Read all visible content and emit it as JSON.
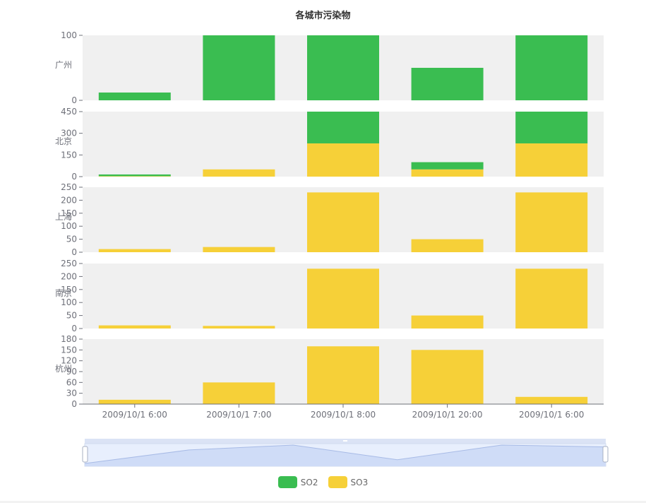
{
  "chart_data": {
    "title": "各城市污染物",
    "type": "bar",
    "stacked": true,
    "categories": [
      "2009/10/1 6:00",
      "2009/10/1 7:00",
      "2009/10/1 8:00",
      "2009/10/1 20:00",
      "2009/10/1 6:00"
    ],
    "legend": {
      "position": "bottom-center",
      "items": [
        "SO2",
        "SO3"
      ]
    },
    "colors": {
      "SO2": "#3abd51",
      "SO3": "#f6d038",
      "grid_bg": "#f0f0f0"
    },
    "panels": [
      {
        "city": "广州",
        "ylim": [
          0,
          100
        ],
        "ticks": [
          0,
          100
        ],
        "series": [
          {
            "name": "SO2",
            "values": [
              12,
              100,
              100,
              50,
              100
            ]
          }
        ]
      },
      {
        "city": "北京",
        "ylim": [
          0,
          450
        ],
        "ticks": [
          0,
          150,
          300,
          450
        ],
        "series": [
          {
            "name": "SO3",
            "values": [
              3,
              50,
              230,
              50,
              230
            ]
          },
          {
            "name": "SO2",
            "values": [
              12,
              0,
              230,
              50,
              230
            ]
          }
        ]
      },
      {
        "city": "上海",
        "ylim": [
          0,
          250
        ],
        "ticks": [
          0,
          50,
          100,
          150,
          200,
          250
        ],
        "series": [
          {
            "name": "SO3",
            "values": [
              12,
              20,
              230,
              50,
              230
            ]
          }
        ]
      },
      {
        "city": "南京",
        "ylim": [
          0,
          250
        ],
        "ticks": [
          0,
          50,
          100,
          150,
          200,
          250
        ],
        "series": [
          {
            "name": "SO3",
            "values": [
              12,
              10,
              230,
              50,
              230
            ]
          }
        ]
      },
      {
        "city": "杭州",
        "ylim": [
          0,
          180
        ],
        "ticks": [
          0,
          30,
          60,
          90,
          120,
          150,
          180
        ],
        "series": [
          {
            "name": "SO3",
            "values": [
              12,
              60,
              160,
              150,
              20
            ]
          }
        ]
      }
    ],
    "data_zoom": {
      "type": "slider",
      "range_percent": [
        0,
        100
      ],
      "preview_values": [
        0,
        22,
        30,
        6,
        30,
        27
      ]
    }
  }
}
